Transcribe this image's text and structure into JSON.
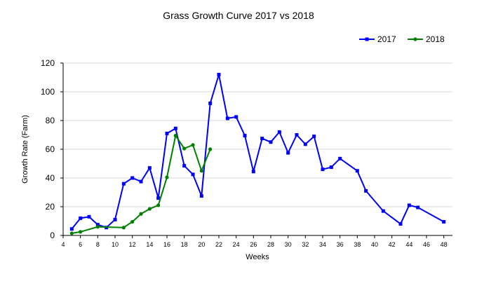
{
  "chart_data": {
    "type": "line",
    "title": "Grass Growth Curve 2017 vs 2018",
    "xlabel": "Weeks",
    "ylabel": "Growth Rate (Farm)",
    "xlim": [
      4,
      49
    ],
    "ylim": [
      0,
      120
    ],
    "x_ticks": [
      "4",
      "6",
      "8",
      "10",
      "12",
      "14",
      "16",
      "18",
      "20",
      "22",
      "24",
      "26",
      "28",
      "30",
      "32",
      "34",
      "36",
      "38",
      "40",
      "42",
      "44",
      "46",
      "48"
    ],
    "y_ticks": [
      "0",
      "20",
      "40",
      "60",
      "80",
      "100",
      "120"
    ],
    "grid": "horizontal",
    "legend_position": "top-right",
    "series": [
      {
        "name": "2017",
        "color": "#0000ff",
        "marker": "square",
        "points": [
          [
            5,
            4.5
          ],
          [
            6,
            12
          ],
          [
            7,
            13
          ],
          [
            8,
            7.5
          ],
          [
            9,
            5.5
          ],
          [
            10,
            11
          ],
          [
            11,
            36
          ],
          [
            12,
            40
          ],
          [
            13,
            37.5
          ],
          [
            14,
            47
          ],
          [
            15,
            26
          ],
          [
            16,
            71
          ],
          [
            17,
            74.5
          ],
          [
            18,
            48.5
          ],
          [
            19,
            42.5
          ],
          [
            20,
            27.5
          ],
          [
            21,
            92
          ],
          [
            22,
            112
          ],
          [
            23,
            81.5
          ],
          [
            24,
            82.5
          ],
          [
            25,
            69.5
          ],
          [
            26,
            44.5
          ],
          [
            27,
            67.5
          ],
          [
            28,
            65
          ],
          [
            29,
            72
          ],
          [
            30,
            57.5
          ],
          [
            31,
            70
          ],
          [
            32,
            63.5
          ],
          [
            33,
            69
          ],
          [
            34,
            46
          ],
          [
            35,
            47.5
          ],
          [
            36,
            53.5
          ],
          [
            38,
            45
          ],
          [
            39,
            31
          ],
          [
            41,
            17
          ],
          [
            43,
            8
          ],
          [
            44,
            21
          ],
          [
            45,
            19.5
          ],
          [
            48,
            9.5
          ]
        ]
      },
      {
        "name": "2018",
        "color": "#008000",
        "marker": "circle",
        "points": [
          [
            5,
            1.5
          ],
          [
            6,
            2.5
          ],
          [
            8,
            6
          ],
          [
            11,
            5.5
          ],
          [
            12,
            9.5
          ],
          [
            13,
            15
          ],
          [
            14,
            18.5
          ],
          [
            15,
            21
          ],
          [
            16,
            40.5
          ],
          [
            17,
            69.5
          ],
          [
            18,
            60.5
          ],
          [
            19,
            63
          ],
          [
            20,
            45
          ],
          [
            21,
            60
          ]
        ]
      }
    ]
  }
}
